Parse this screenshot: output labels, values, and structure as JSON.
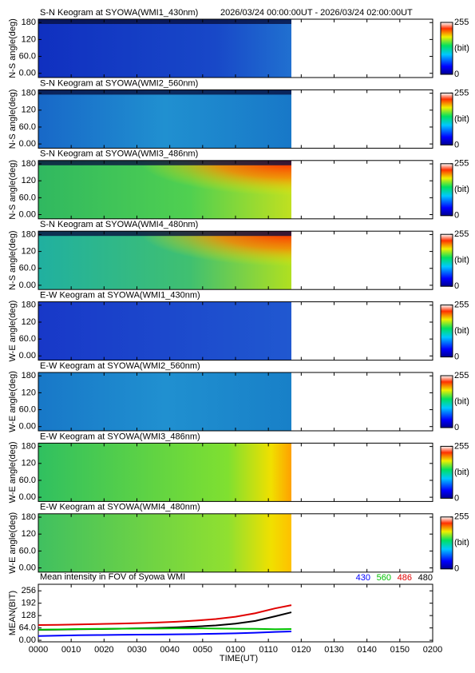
{
  "chart_data": [
    {
      "type": "keogram",
      "title": "S-N Keogram at SYOWA(WMI1_430nm)",
      "subtitle": "2026/03/24 00:00:00UT - 2026/03/24 02:00:00UT",
      "ylabel": "N-S angle(deg)",
      "ylim": [
        -15,
        192
      ],
      "yticks": [
        {
          "value": 0,
          "label": "0.00"
        },
        {
          "value": 60,
          "label": "60.0"
        },
        120,
        180
      ],
      "colorbar": {
        "lim": [
          0,
          255
        ],
        "ticks": [
          0,
          255
        ],
        "label": "(bit)"
      }
    },
    {
      "type": "keogram",
      "title": "S-N Keogram at SYOWA(WMI2_560nm)",
      "ylabel": "N-S angle(deg)",
      "ylim": [
        -15,
        192
      ],
      "yticks": [
        {
          "value": 0,
          "label": "0.00"
        },
        {
          "value": 60,
          "label": "60.0"
        },
        120,
        180
      ],
      "colorbar": {
        "lim": [
          0,
          255
        ],
        "ticks": [
          0,
          255
        ],
        "label": "(bit)"
      }
    },
    {
      "type": "keogram",
      "title": "S-N Keogram at SYOWA(WMI3_486nm)",
      "ylabel": "N-S angle(deg)",
      "ylim": [
        -15,
        192
      ],
      "yticks": [
        {
          "value": 0,
          "label": "0.00"
        },
        {
          "value": 60,
          "label": "60.0"
        },
        120,
        180
      ],
      "colorbar": {
        "lim": [
          0,
          255
        ],
        "ticks": [
          0,
          255
        ],
        "label": "(bit)"
      }
    },
    {
      "type": "keogram",
      "title": "S-N Keogram at SYOWA(WMI4_480nm)",
      "ylabel": "N-S angle(deg)",
      "ylim": [
        -15,
        192
      ],
      "yticks": [
        {
          "value": 0,
          "label": "0.00"
        },
        {
          "value": 60,
          "label": "60.0"
        },
        120,
        180
      ],
      "colorbar": {
        "lim": [
          0,
          255
        ],
        "ticks": [
          0,
          255
        ],
        "label": "(bit)"
      }
    },
    {
      "type": "keogram",
      "title": "E-W Keogram at SYOWA(WMI1_430nm)",
      "ylabel": "W-E angle(deg)",
      "ylim": [
        -15,
        192
      ],
      "yticks": [
        {
          "value": 0,
          "label": "0.00"
        },
        {
          "value": 60,
          "label": "60.0"
        },
        120,
        180
      ],
      "colorbar": {
        "lim": [
          0,
          255
        ],
        "ticks": [
          0,
          255
        ],
        "label": "(bit)"
      }
    },
    {
      "type": "keogram",
      "title": "E-W Keogram at SYOWA(WMI2_560nm)",
      "ylabel": "W-E angle(deg)",
      "ylim": [
        -15,
        192
      ],
      "yticks": [
        {
          "value": 0,
          "label": "0.00"
        },
        {
          "value": 60,
          "label": "60.0"
        },
        120,
        180
      ],
      "colorbar": {
        "lim": [
          0,
          255
        ],
        "ticks": [
          0,
          255
        ],
        "label": "(bit)"
      }
    },
    {
      "type": "keogram",
      "title": "E-W Keogram at SYOWA(WMI3_486nm)",
      "ylabel": "W-E angle(deg)",
      "ylim": [
        -15,
        192
      ],
      "yticks": [
        {
          "value": 0,
          "label": "0.00"
        },
        {
          "value": 60,
          "label": "60.0"
        },
        120,
        180
      ],
      "colorbar": {
        "lim": [
          0,
          255
        ],
        "ticks": [
          0,
          255
        ],
        "label": "(bit)"
      }
    },
    {
      "type": "keogram",
      "title": "E-W Keogram at SYOWA(WMI4_480nm)",
      "ylabel": "W-E angle(deg)",
      "ylim": [
        -15,
        192
      ],
      "yticks": [
        {
          "value": 0,
          "label": "0.00"
        },
        {
          "value": 60,
          "label": "60.0"
        },
        120,
        180
      ],
      "colorbar": {
        "lim": [
          0,
          255
        ],
        "ticks": [
          0,
          255
        ],
        "label": "(bit)"
      }
    },
    {
      "type": "line",
      "title": "Mean intensity in FOV of Syowa WMI",
      "ylabel": "MEAN(BIT)",
      "xlabel": "TIME(UT)",
      "xlim": [
        0,
        120
      ],
      "xticks": [
        {
          "value": 0,
          "label": "0000"
        },
        {
          "value": 10,
          "label": "0010"
        },
        {
          "value": 20,
          "label": "0020"
        },
        {
          "value": 30,
          "label": "0030"
        },
        {
          "value": 40,
          "label": "0040"
        },
        {
          "value": 50,
          "label": "0050"
        },
        {
          "value": 60,
          "label": "0100"
        },
        {
          "value": 70,
          "label": "0110"
        },
        {
          "value": 80,
          "label": "0120"
        },
        {
          "value": 90,
          "label": "0130"
        },
        {
          "value": 100,
          "label": "0140"
        },
        {
          "value": 110,
          "label": "0150"
        },
        {
          "value": 120,
          "label": "0200"
        }
      ],
      "ylim": [
        -8,
        290
      ],
      "yticks": [
        {
          "value": 0,
          "label": "0.00"
        },
        {
          "value": 64,
          "label": "64.0"
        },
        128,
        192,
        256
      ],
      "x": [
        0,
        6,
        12,
        18,
        24,
        30,
        36,
        42,
        48,
        54,
        60,
        66,
        72,
        77
      ],
      "series": [
        {
          "name": "430",
          "color": "#0000ff",
          "values": [
            22,
            24,
            26,
            27,
            28,
            29,
            30,
            31,
            32,
            34,
            36,
            39,
            43,
            46
          ]
        },
        {
          "name": "560",
          "color": "#00c000",
          "values": [
            55,
            56,
            58,
            59,
            60,
            61,
            61,
            62,
            62,
            61,
            60,
            59,
            57,
            58
          ]
        },
        {
          "name": "486",
          "color": "#e00000",
          "values": [
            79,
            80,
            82,
            84,
            86,
            89,
            92,
            96,
            102,
            110,
            122,
            140,
            165,
            182
          ]
        },
        {
          "name": "480",
          "color": "#000000",
          "values": [
            54,
            55,
            57,
            58,
            60,
            62,
            64,
            67,
            71,
            77,
            86,
            100,
            124,
            145
          ]
        }
      ]
    }
  ]
}
